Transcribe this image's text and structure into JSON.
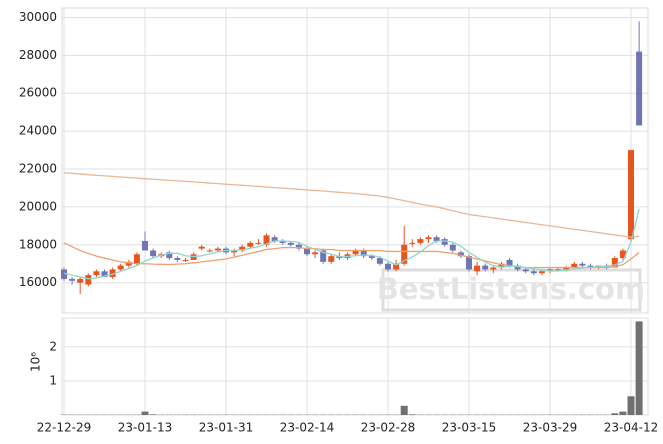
{
  "chart_data": {
    "type": "candlestick",
    "categories": [
      "22-12-29",
      null,
      null,
      null,
      null,
      null,
      null,
      null,
      null,
      null,
      "23-01-13",
      null,
      null,
      null,
      null,
      null,
      null,
      null,
      null,
      null,
      "23-01-31",
      null,
      null,
      null,
      null,
      null,
      null,
      null,
      null,
      null,
      "23-02-14",
      null,
      null,
      null,
      null,
      null,
      null,
      null,
      null,
      null,
      "23-02-28",
      null,
      null,
      null,
      null,
      null,
      null,
      null,
      null,
      null,
      "23-03-15",
      null,
      null,
      null,
      null,
      null,
      null,
      null,
      null,
      null,
      "23-03-29",
      null,
      null,
      null,
      null,
      null,
      null,
      null,
      null,
      null,
      "23-04-12",
      null
    ],
    "open": [
      16700,
      16200,
      16000,
      15900,
      16400,
      16600,
      16300,
      16700,
      16900,
      17000,
      18200,
      17700,
      17400,
      17600,
      17300,
      17200,
      17200,
      17800,
      17700,
      17700,
      17800,
      17600,
      17700,
      17900,
      18100,
      18000,
      18400,
      18200,
      18100,
      18000,
      17800,
      17500,
      17700,
      17100,
      17400,
      17300,
      17500,
      17700,
      17400,
      17300,
      17000,
      16700,
      17000,
      18100,
      18100,
      18300,
      18400,
      18300,
      18000,
      17600,
      17400,
      16600,
      16900,
      16700,
      16800,
      17200,
      16900,
      16700,
      16600,
      16500,
      16600,
      16700,
      16700,
      16800,
      17000,
      16900,
      16800,
      16900,
      16800,
      17300,
      18300,
      28200
    ],
    "high": [
      16800,
      16300,
      16300,
      16500,
      16700,
      16700,
      16800,
      17000,
      17200,
      17600,
      18700,
      17800,
      17600,
      17700,
      17400,
      17300,
      17600,
      18000,
      17800,
      17900,
      17900,
      17800,
      18000,
      18200,
      18300,
      18600,
      18500,
      18300,
      18200,
      18100,
      17900,
      17700,
      17800,
      17500,
      17600,
      17600,
      17800,
      17800,
      17500,
      17400,
      17100,
      17200,
      19000,
      18300,
      18400,
      18500,
      18500,
      18400,
      18100,
      17700,
      17500,
      17100,
      17000,
      16900,
      17100,
      17300,
      17000,
      16800,
      16700,
      16700,
      16800,
      16800,
      16900,
      17100,
      17100,
      17000,
      16900,
      17000,
      17400,
      17800,
      23000,
      29800
    ],
    "low": [
      16100,
      15900,
      15400,
      15800,
      16300,
      16300,
      16200,
      16600,
      16800,
      16900,
      17700,
      17300,
      17300,
      17200,
      17100,
      17100,
      17200,
      17700,
      17600,
      17600,
      17500,
      17400,
      17600,
      17800,
      18000,
      17900,
      18100,
      18000,
      17900,
      17700,
      17400,
      17300,
      17000,
      17000,
      17200,
      17200,
      17400,
      17300,
      17200,
      16900,
      16600,
      16600,
      16900,
      17900,
      18000,
      18100,
      18100,
      17900,
      17600,
      17300,
      16600,
      16400,
      16600,
      16500,
      16700,
      16800,
      16600,
      16500,
      16400,
      16400,
      16500,
      16600,
      16600,
      16700,
      16800,
      16700,
      16700,
      16700,
      16800,
      17200,
      18200,
      24300
    ],
    "close": [
      16200,
      16100,
      16200,
      16400,
      16600,
      16300,
      16700,
      16900,
      17100,
      17500,
      17700,
      17400,
      17500,
      17300,
      17200,
      17200,
      17500,
      17900,
      17700,
      17800,
      17600,
      17700,
      17900,
      18100,
      18100,
      18500,
      18200,
      18100,
      18000,
      17800,
      17500,
      17600,
      17100,
      17400,
      17300,
      17500,
      17700,
      17400,
      17300,
      17000,
      16700,
      17000,
      18000,
      18100,
      18300,
      18400,
      18200,
      18000,
      17700,
      17400,
      16700,
      16900,
      16700,
      16800,
      17000,
      16900,
      16700,
      16600,
      16500,
      16600,
      16700,
      16700,
      16800,
      17000,
      16900,
      16800,
      16900,
      16800,
      17300,
      17700,
      23000,
      24300
    ],
    "up_color": "#e8541e",
    "down_color": "#6f75b5",
    "lines": [
      {
        "color": "#e8b896",
        "values": [
          21800,
          21770,
          21740,
          21700,
          21670,
          21640,
          21610,
          21580,
          21550,
          21520,
          21490,
          21460,
          21430,
          21400,
          21380,
          21350,
          21320,
          21290,
          21260,
          21230,
          21200,
          21170,
          21140,
          21110,
          21080,
          21050,
          21020,
          20990,
          20960,
          20930,
          20900,
          20870,
          20840,
          20800,
          20770,
          20740,
          20700,
          20660,
          20620,
          20570,
          20500,
          20420,
          20330,
          20240,
          20150,
          20070,
          20000,
          19900,
          19800,
          19700,
          19600,
          19540,
          19480,
          19420,
          19360,
          19300,
          19240,
          19180,
          19120,
          19060,
          19000,
          18940,
          18880,
          18820,
          18760,
          18700,
          18640,
          18580,
          18520,
          18460,
          18400,
          18450
        ]
      },
      {
        "color": "#f0a070",
        "values": [
          18100,
          17900,
          17700,
          17550,
          17400,
          17300,
          17200,
          17100,
          17050,
          17000,
          17000,
          16980,
          16970,
          16960,
          16980,
          17000,
          17050,
          17100,
          17150,
          17200,
          17250,
          17350,
          17450,
          17550,
          17650,
          17750,
          17800,
          17850,
          17850,
          17850,
          17800,
          17800,
          17750,
          17750,
          17700,
          17700,
          17700,
          17700,
          17700,
          17700,
          17650,
          17650,
          17650,
          17650,
          17650,
          17650,
          17650,
          17600,
          17550,
          17450,
          17350,
          17250,
          17150,
          17050,
          16950,
          16900,
          16850,
          16800,
          16800,
          16800,
          16800,
          16800,
          16800,
          16800,
          16800,
          16800,
          16800,
          16800,
          16850,
          16950,
          17250,
          17600
        ]
      },
      {
        "color": "#8fd6cc",
        "values": [
          16500,
          16400,
          16300,
          16200,
          16250,
          16350,
          16450,
          16600,
          16750,
          16900,
          17150,
          17300,
          17450,
          17550,
          17550,
          17420,
          17380,
          17420,
          17520,
          17620,
          17700,
          17700,
          17740,
          17820,
          17900,
          18040,
          18200,
          18200,
          18180,
          18120,
          17920,
          17760,
          17600,
          17500,
          17380,
          17380,
          17420,
          17460,
          17440,
          17340,
          17140,
          16940,
          17160,
          17360,
          17620,
          17960,
          18200,
          18200,
          18140,
          17920,
          17600,
          17340,
          17080,
          16900,
          16820,
          16860,
          16860,
          16800,
          16740,
          16660,
          16620,
          16620,
          16660,
          16720,
          16780,
          16820,
          16840,
          16860,
          16940,
          17120,
          18140,
          19900
        ]
      }
    ],
    "ylim": [
      14400,
      30500
    ],
    "yticks": [
      16000,
      18000,
      20000,
      22000,
      24000,
      26000,
      28000,
      30000
    ],
    "grid": true,
    "watermark": "BestListens.com",
    "volume": {
      "color": "#707070",
      "scale_label": "10⁶",
      "ylim": [
        0,
        2.85
      ],
      "yticks": [
        1,
        2
      ],
      "values": [
        0.01,
        0.01,
        0.01,
        0.01,
        0.01,
        0.01,
        0.01,
        0.01,
        0.01,
        0.01,
        0.1,
        0.02,
        0.01,
        0.01,
        0.01,
        0.01,
        0.01,
        0.01,
        0.01,
        0.01,
        0.01,
        0.01,
        0.01,
        0.01,
        0.01,
        0.01,
        0.01,
        0.01,
        0.01,
        0.01,
        0.01,
        0.01,
        0.01,
        0.01,
        0.01,
        0.01,
        0.01,
        0.01,
        0.01,
        0.01,
        0.01,
        0.01,
        0.27,
        0.02,
        0.01,
        0.01,
        0.01,
        0.01,
        0.01,
        0.01,
        0.01,
        0.01,
        0.01,
        0.01,
        0.01,
        0.01,
        0.01,
        0.01,
        0.01,
        0.01,
        0.01,
        0.01,
        0.01,
        0.01,
        0.01,
        0.01,
        0.01,
        0.01,
        0.05,
        0.1,
        0.55,
        2.75
      ]
    }
  }
}
